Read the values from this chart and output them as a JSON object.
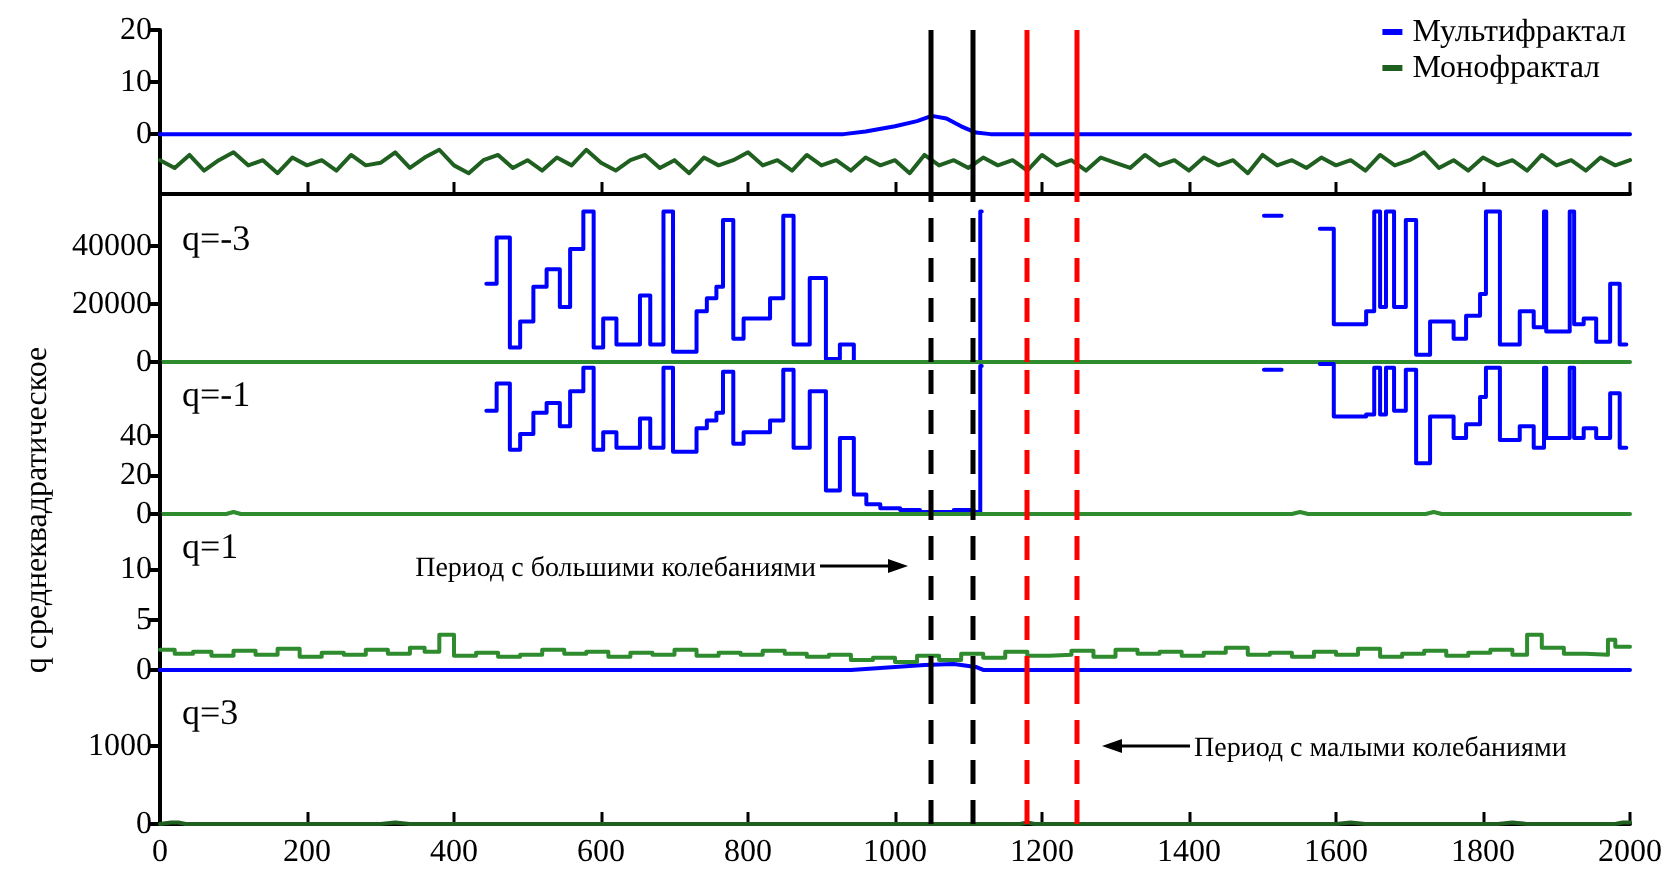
{
  "chart_data": [
    {
      "type": "line",
      "xlim": [
        0,
        2000
      ],
      "xticks": [
        0,
        200,
        400,
        600,
        800,
        1000,
        1200,
        1400,
        1600,
        1800,
        2000
      ],
      "ylim": [
        -11.5,
        20
      ],
      "yticks": [
        0,
        10,
        20
      ],
      "tick_labels": "y",
      "legend": "top right",
      "grid": false,
      "line_style": "solid",
      "marker": "none",
      "ref_lines": [
        {
          "axis": "x",
          "value": 1048,
          "color": "#000000",
          "line_style": "solid"
        },
        {
          "axis": "x",
          "value": 1105,
          "color": "#000000",
          "line_style": "solid"
        },
        {
          "axis": "x",
          "value": 1178,
          "color": "#ff0000",
          "line_style": "solid"
        },
        {
          "axis": "x",
          "value": 1248,
          "color": "#ff0000",
          "line_style": "solid"
        }
      ],
      "series": [
        {
          "name": "Мультифрактал",
          "color": "#0000ff",
          "x": [
            0,
            930,
            960,
            1000,
            1030,
            1050,
            1070,
            1090,
            1110,
            1130,
            2000
          ],
          "values": [
            0,
            0,
            0.5,
            1.5,
            2.5,
            3.5,
            3,
            1.5,
            0.3,
            0,
            0
          ]
        },
        {
          "name": "Монофрактал",
          "color": "#1f5f1f",
          "x": [
            0,
            20,
            40,
            60,
            80,
            100,
            120,
            140,
            160,
            180,
            200,
            220,
            240,
            260,
            280,
            300,
            320,
            340,
            360,
            380,
            400,
            420,
            440,
            460,
            480,
            500,
            520,
            540,
            560,
            580,
            600,
            620,
            640,
            660,
            680,
            700,
            720,
            740,
            760,
            780,
            800,
            820,
            840,
            860,
            880,
            900,
            920,
            940,
            960,
            980,
            1000,
            1020,
            1040,
            1060,
            1080,
            1100,
            1120,
            1140,
            1160,
            1180,
            1200,
            1220,
            1240,
            1260,
            1280,
            1300,
            1320,
            1340,
            1360,
            1380,
            1400,
            1420,
            1440,
            1460,
            1480,
            1500,
            1520,
            1540,
            1560,
            1580,
            1600,
            1620,
            1640,
            1660,
            1680,
            1700,
            1720,
            1740,
            1760,
            1780,
            1800,
            1820,
            1840,
            1860,
            1880,
            1900,
            1920,
            1940,
            1960,
            1980,
            2000
          ],
          "values": [
            -5,
            -6.5,
            -4,
            -7,
            -5,
            -3.5,
            -6,
            -5,
            -7.5,
            -4.5,
            -6,
            -5,
            -7,
            -4,
            -6,
            -5.5,
            -3.5,
            -6.5,
            -4.5,
            -3,
            -6,
            -7.5,
            -5,
            -4,
            -6.5,
            -5,
            -7,
            -4.5,
            -6,
            -3,
            -5.5,
            -7,
            -5,
            -4,
            -6.5,
            -5,
            -7.5,
            -4.5,
            -6,
            -5,
            -3.5,
            -6,
            -5,
            -7,
            -4,
            -6,
            -5,
            -7,
            -4.5,
            -6,
            -5,
            -7.5,
            -4,
            -6,
            -5,
            -6.5,
            -4.5,
            -6,
            -5,
            -7,
            -4,
            -6,
            -5,
            -7,
            -4.5,
            -5.5,
            -6.5,
            -4,
            -6,
            -5,
            -7,
            -4.5,
            -6,
            -5,
            -7.5,
            -4,
            -6,
            -5,
            -6.5,
            -4.5,
            -6,
            -5,
            -7,
            -4,
            -6,
            -5,
            -3.5,
            -6.5,
            -5,
            -7,
            -4.5,
            -6,
            -5,
            -7,
            -4,
            -6,
            -5,
            -7,
            -4.5,
            -6,
            -5
          ]
        }
      ]
    },
    {
      "type": "step",
      "title": "q=-3",
      "xlim": [
        0,
        2000
      ],
      "ylim": [
        0,
        58000
      ],
      "yticks": [
        0,
        20000,
        40000
      ],
      "tick_labels": "y",
      "grid": false,
      "marker": "none",
      "ref_lines": [
        {
          "axis": "x",
          "value": 1048,
          "color": "#000000",
          "line_style": "dashed"
        },
        {
          "axis": "x",
          "value": 1105,
          "color": "#000000",
          "line_style": "dashed"
        },
        {
          "axis": "x",
          "value": 1178,
          "color": "#ff0000",
          "line_style": "dashed"
        },
        {
          "axis": "x",
          "value": 1248,
          "color": "#ff0000",
          "line_style": "dashed"
        }
      ],
      "series": [
        {
          "color": "#0000ff",
          "x": [
            444,
            458,
            476,
            490,
            508,
            526,
            544,
            558,
            576,
            590,
            603,
            621,
            653,
            667,
            685,
            698,
            730,
            744,
            757,
            766,
            780,
            794,
            830,
            848,
            862,
            884,
            906,
            925,
            944,
            950,
            1112,
            1116,
            1118,
            1502,
            1524,
            1526,
            1578,
            1597,
            1641,
            1652,
            1660,
            1668,
            1679,
            1695,
            1709,
            1728,
            1760,
            1777,
            1796,
            1804,
            1823,
            1850,
            1869,
            1883,
            1886,
            1918,
            1924,
            1937,
            1954,
            1973,
            1986,
            1995
          ],
          "values": [
            27000,
            43000,
            5000,
            14000,
            26000,
            32000,
            19000,
            39000,
            52000,
            5000,
            15000,
            6000,
            23000,
            6000,
            52000,
            3500,
            17500,
            22000,
            26000,
            49000,
            8000,
            15000,
            22000,
            50500,
            6000,
            29000,
            1000,
            6000,
            0,
            null,
            0,
            52000,
            null,
            50500,
            50500,
            null,
            46000,
            13000,
            17500,
            52000,
            19000,
            52000,
            19000,
            49000,
            2500,
            14000,
            8000,
            16000,
            23500,
            52000,
            6000,
            17500,
            12000,
            52000,
            10500,
            52000,
            13000,
            15000,
            7000,
            27000,
            6000,
            6000
          ]
        },
        {
          "type": "line",
          "color": "#2e8b2e",
          "x": [
            0,
            2000
          ],
          "values": [
            0,
            0
          ]
        }
      ]
    },
    {
      "type": "step",
      "title": "q=-1",
      "ylabel": "q среднеквадратическое",
      "xlim": [
        0,
        2000
      ],
      "ylim": [
        0,
        78
      ],
      "yticks": [
        0,
        20,
        40
      ],
      "tick_labels": "y",
      "grid": false,
      "marker": "none",
      "ref_lines": [
        {
          "axis": "x",
          "value": 1048,
          "color": "#000000",
          "line_style": "dashed"
        },
        {
          "axis": "x",
          "value": 1105,
          "color": "#000000",
          "line_style": "dashed"
        },
        {
          "axis": "x",
          "value": 1178,
          "color": "#ff0000",
          "line_style": "dashed"
        },
        {
          "axis": "x",
          "value": 1248,
          "color": "#ff0000",
          "line_style": "dashed"
        }
      ],
      "series": [
        {
          "color": "#0000ff",
          "x": [
            444,
            458,
            476,
            490,
            508,
            526,
            544,
            558,
            576,
            590,
            603,
            621,
            653,
            667,
            685,
            698,
            730,
            744,
            757,
            766,
            780,
            794,
            830,
            848,
            862,
            884,
            906,
            925,
            944,
            961,
            980,
            1007,
            1034,
            1080,
            1107,
            1116,
            1118,
            1502,
            1524,
            1526,
            1578,
            1597,
            1641,
            1652,
            1660,
            1668,
            1679,
            1695,
            1709,
            1728,
            1760,
            1777,
            1796,
            1804,
            1823,
            1850,
            1869,
            1883,
            1886,
            1918,
            1924,
            1937,
            1954,
            1973,
            1986,
            1995
          ],
          "values": [
            53,
            67,
            33,
            41,
            52,
            57,
            45,
            63,
            75,
            33,
            42,
            34,
            49,
            34,
            75,
            32,
            44,
            48,
            52,
            73,
            36,
            42,
            48,
            74,
            34,
            63,
            12,
            39,
            10,
            5,
            3,
            2,
            1,
            2,
            1,
            76,
            null,
            74,
            74,
            null,
            77,
            50,
            51,
            75,
            51,
            75,
            53,
            74,
            26,
            50,
            39,
            46,
            60,
            75,
            38,
            45,
            34,
            75,
            39,
            75,
            39,
            44,
            39,
            62,
            34,
            34
          ]
        },
        {
          "type": "line",
          "color": "#2e8b2e",
          "x": [
            0,
            90,
            100,
            110,
            1540,
            1551,
            1562,
            1722,
            1733,
            1744,
            2000
          ],
          "values": [
            0,
            0,
            1,
            0,
            0,
            1,
            0,
            0,
            1,
            0,
            0
          ]
        }
      ]
    },
    {
      "type": "step",
      "title": "q=1",
      "xlim": [
        0,
        2000
      ],
      "ylim": [
        -1,
        15.5
      ],
      "yticks": [
        0,
        5,
        10
      ],
      "tick_labels": "y",
      "grid": false,
      "marker": "none",
      "annotations": [
        "Период с большими колебаниями"
      ],
      "ref_lines": [
        {
          "axis": "x",
          "value": 1048,
          "color": "#000000",
          "line_style": "dashed"
        },
        {
          "axis": "x",
          "value": 1105,
          "color": "#000000",
          "line_style": "dashed"
        },
        {
          "axis": "x",
          "value": 1178,
          "color": "#ff0000",
          "line_style": "dashed"
        },
        {
          "axis": "x",
          "value": 1248,
          "color": "#ff0000",
          "line_style": "dashed"
        }
      ],
      "series": [
        {
          "type": "line",
          "color": "#0000ff",
          "x": [
            0,
            940,
            1000,
            1040,
            1080,
            1110,
            1120,
            2000
          ],
          "values": [
            0,
            0,
            0.3,
            0.5,
            0.6,
            0.3,
            0,
            0
          ]
        },
        {
          "color": "#2e8b2e",
          "x": [
            0,
            20,
            45,
            70,
            100,
            130,
            160,
            190,
            220,
            250,
            280,
            310,
            340,
            360,
            380,
            400,
            430,
            460,
            490,
            520,
            550,
            580,
            610,
            640,
            670,
            700,
            730,
            760,
            790,
            820,
            850,
            880,
            910,
            940,
            970,
            1000,
            1030,
            1060,
            1090,
            1120,
            1150,
            1180,
            1210,
            1240,
            1270,
            1300,
            1330,
            1360,
            1390,
            1420,
            1450,
            1480,
            1510,
            1540,
            1570,
            1600,
            1630,
            1660,
            1690,
            1720,
            1750,
            1780,
            1810,
            1840,
            1860,
            1880,
            1910,
            1940,
            1970,
            1980,
            2000
          ],
          "values": [
            2,
            1.6,
            1.8,
            1.4,
            1.9,
            1.5,
            2.1,
            1.3,
            1.7,
            1.5,
            2,
            1.6,
            2.2,
            1.8,
            3.5,
            1.4,
            1.7,
            1.3,
            1.5,
            2,
            1.6,
            1.8,
            1.3,
            1.7,
            1.5,
            2,
            1.4,
            1.7,
            1.5,
            1.9,
            1.6,
            1.3,
            1.5,
            1,
            1.2,
            0.8,
            1.4,
            1,
            1.6,
            1.2,
            1.8,
            1.4,
            1.5,
            1.9,
            1.3,
            2,
            1.6,
            1.8,
            1.4,
            1.7,
            2.2,
            1.5,
            1.7,
            1.3,
            1.8,
            1.5,
            2.1,
            1.3,
            1.6,
            1.9,
            1.4,
            1.7,
            2,
            1.5,
            3.5,
            2.2,
            1.6,
            1.5,
            3,
            2.3,
            2.3
          ]
        }
      ]
    },
    {
      "type": "line",
      "title": "q=3",
      "xlim": [
        0,
        2000
      ],
      "xticks": [
        0,
        200,
        400,
        600,
        800,
        1000,
        1200,
        1400,
        1600,
        1800,
        2000
      ],
      "ylim": [
        0,
        1850
      ],
      "yticks": [
        0,
        1000
      ],
      "grid": false,
      "marker": "none",
      "annotations": [
        "Период с малыми колебаниями"
      ],
      "ref_lines": [
        {
          "axis": "x",
          "value": 1048,
          "color": "#000000",
          "line_style": "dashed"
        },
        {
          "axis": "x",
          "value": 1105,
          "color": "#000000",
          "line_style": "dashed"
        },
        {
          "axis": "x",
          "value": 1178,
          "color": "#ff0000",
          "line_style": "dashed"
        },
        {
          "axis": "x",
          "value": 1248,
          "color": "#ff0000",
          "line_style": "dashed"
        }
      ],
      "series": [
        {
          "color": "#1f5f1f",
          "x": [
            0,
            15,
            25,
            35,
            300,
            320,
            340,
            1170,
            1180,
            1190,
            1600,
            1620,
            1640,
            1820,
            1840,
            1860,
            1980,
            1990,
            2000
          ],
          "values": [
            0,
            20,
            20,
            0,
            0,
            20,
            0,
            0,
            20,
            0,
            0,
            20,
            0,
            0,
            20,
            0,
            0,
            20,
            20
          ]
        }
      ]
    }
  ]
}
